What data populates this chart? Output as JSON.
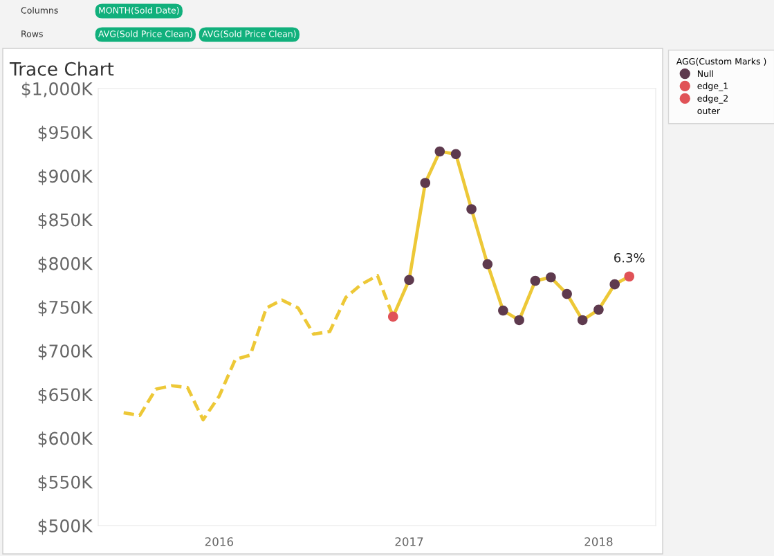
{
  "chart_data": {
    "type": "line",
    "title": "Trace Chart",
    "legend_title": "AGG(Custom Marks )",
    "legend": "right",
    "grid": false,
    "annotations": [
      "Columns",
      "MONTH(Sold Date)",
      "Rows",
      "AVG(Sold Price Clean)",
      "AVG(Sold Price Clean)",
      {
        "text": "6.3%",
        "x": "2018-03",
        "y": 785000
      }
    ],
    "xlim": [
      "2015-05-13",
      "2018-04-21"
    ],
    "xticks": [
      "2016",
      "2017",
      "2018"
    ],
    "ylim": [
      500000,
      1000000
    ],
    "yticks": [
      {
        "value": 500000,
        "label": "$500K"
      },
      {
        "value": 550000,
        "label": "$550K"
      },
      {
        "value": 600000,
        "label": "$600K"
      },
      {
        "value": 650000,
        "label": "$650K"
      },
      {
        "value": 700000,
        "label": "$700K"
      },
      {
        "value": 750000,
        "label": "$750K"
      },
      {
        "value": 800000,
        "label": "$800K"
      },
      {
        "value": 850000,
        "label": "$850K"
      },
      {
        "value": 900000,
        "label": "$900K"
      },
      {
        "value": 950000,
        "label": "$950K"
      },
      {
        "value": 1000000,
        "label": "$1,000K"
      }
    ],
    "series": [
      {
        "type": "line",
        "line_style": "dashed",
        "marker": "none",
        "color": "#edc837",
        "x": [
          "2015-07",
          "2015-08",
          "2015-09",
          "2015-10",
          "2015-11",
          "2015-12",
          "2016-01",
          "2016-02",
          "2016-03",
          "2016-04",
          "2016-05",
          "2016-06",
          "2016-07",
          "2016-08",
          "2016-09",
          "2016-10",
          "2016-11",
          "2016-12"
        ],
        "values": [
          629000,
          626000,
          656000,
          660000,
          658000,
          621000,
          648000,
          690000,
          695000,
          749000,
          758000,
          749000,
          719000,
          722000,
          761000,
          776000,
          786000,
          739000
        ]
      },
      {
        "type": "line",
        "line_style": "solid",
        "marker": "none",
        "color": "#edc837",
        "x": [
          "2016-12",
          "2017-01",
          "2017-02",
          "2017-03",
          "2017-04",
          "2017-05",
          "2017-06",
          "2017-07",
          "2017-08",
          "2017-09",
          "2017-10",
          "2017-11",
          "2017-12",
          "2018-01",
          "2018-02",
          "2018-03"
        ],
        "values": [
          739000,
          781000,
          892000,
          928000,
          925000,
          862000,
          799000,
          746000,
          735000,
          780000,
          784000,
          765000,
          735000,
          747000,
          776000,
          785000
        ]
      },
      {
        "type": "scatter",
        "name": "Null",
        "marker": "circle",
        "color": "#5e3a4e",
        "x": [
          "2017-01",
          "2017-02",
          "2017-03",
          "2017-04",
          "2017-05",
          "2017-06",
          "2017-07",
          "2017-08",
          "2017-09",
          "2017-10",
          "2017-11",
          "2017-12",
          "2018-01",
          "2018-02"
        ],
        "values": [
          781000,
          892000,
          928000,
          925000,
          862000,
          799000,
          746000,
          735000,
          780000,
          784000,
          765000,
          735000,
          747000,
          776000
        ]
      },
      {
        "type": "scatter",
        "name": "edge_1",
        "marker": "circle",
        "color": "#e05257",
        "x": [
          "2016-12"
        ],
        "values": [
          739000
        ]
      },
      {
        "type": "scatter",
        "name": "edge_2",
        "marker": "circle",
        "color": "#e05257",
        "x": [
          "2018-03"
        ],
        "values": [
          785000
        ]
      },
      {
        "type": "scatter",
        "name": "outer"
      }
    ]
  }
}
